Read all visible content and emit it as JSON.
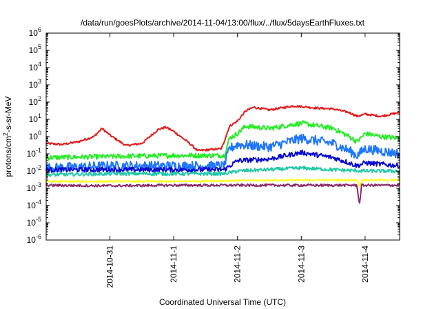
{
  "chart_data": {
    "type": "line",
    "title": "/data/run/goesPlots/archive/2014-11-04/13:00/flux/../flux/5daysEarthFluxes.txt",
    "xlabel": "Coordinated Universal Time (UTC)",
    "ylabel_parts": {
      "pre": "protons/cm",
      "sup": "2",
      "post": "-s-sr-MeV"
    },
    "y_scale": "log",
    "ylim": [
      1e-06,
      1000000.0
    ],
    "xlim": [
      "2014-10-30 00:00",
      "2014-11-04 13:00"
    ],
    "grid": false,
    "legend": "none",
    "x_ticks": [
      {
        "label": "2014-10-31",
        "x": "2014-10-31 00:00"
      },
      {
        "label": "2014-11-1",
        "x": "2014-11-01 00:00"
      },
      {
        "label": "2014-11-2",
        "x": "2014-11-02 00:00"
      },
      {
        "label": "2014-11-3",
        "x": "2014-11-03 00:00"
      },
      {
        "label": "2014-11-4",
        "x": "2014-11-04 00:00"
      }
    ],
    "y_ticks": [
      {
        "base": "10",
        "exp": "-6",
        "value": 1e-06
      },
      {
        "base": "10",
        "exp": "-5",
        "value": 1e-05
      },
      {
        "base": "10",
        "exp": "-4",
        "value": 0.0001
      },
      {
        "base": "10",
        "exp": "-3",
        "value": 0.001
      },
      {
        "base": "10",
        "exp": "-2",
        "value": 0.01
      },
      {
        "base": "10",
        "exp": "-1",
        "value": 0.1
      },
      {
        "base": "10",
        "exp": "0",
        "value": 1
      },
      {
        "base": "10",
        "exp": "1",
        "value": 10
      },
      {
        "base": "10",
        "exp": "2",
        "value": 100
      },
      {
        "base": "10",
        "exp": "3",
        "value": 1000
      },
      {
        "base": "10",
        "exp": "4",
        "value": 10000
      },
      {
        "base": "10",
        "exp": "5",
        "value": 100000
      },
      {
        "base": "10",
        "exp": "6",
        "value": 1000000
      }
    ],
    "series": [
      {
        "color": "#e41a1c",
        "noise": 0.06,
        "points": [
          [
            "2014-10-30 00:00",
            0.4
          ],
          [
            "2014-10-30 06:00",
            0.35
          ],
          [
            "2014-10-30 12:00",
            0.5
          ],
          [
            "2014-10-30 18:00",
            1.0
          ],
          [
            "2014-10-30 21:00",
            3.0
          ],
          [
            "2014-10-31 00:00",
            1.2
          ],
          [
            "2014-10-31 06:00",
            0.3
          ],
          [
            "2014-10-31 12:00",
            0.4
          ],
          [
            "2014-10-31 18:00",
            2.5
          ],
          [
            "2014-10-31 21:00",
            3.5
          ],
          [
            "2014-11-01 00:00",
            2.0
          ],
          [
            "2014-11-01 06:00",
            0.4
          ],
          [
            "2014-11-01 09:00",
            0.15
          ],
          [
            "2014-11-01 18:00",
            0.2
          ],
          [
            "2014-11-01 21:00",
            4.0
          ],
          [
            "2014-11-02 00:00",
            8
          ],
          [
            "2014-11-02 03:00",
            30
          ],
          [
            "2014-11-02 06:00",
            50
          ],
          [
            "2014-11-02 12:00",
            35
          ],
          [
            "2014-11-02 21:00",
            60
          ],
          [
            "2014-11-03 00:00",
            55
          ],
          [
            "2014-11-03 06:00",
            45
          ],
          [
            "2014-11-03 12:00",
            40
          ],
          [
            "2014-11-03 18:00",
            25
          ],
          [
            "2014-11-03 21:00",
            15
          ],
          [
            "2014-11-04 00:00",
            20
          ],
          [
            "2014-11-04 06:00",
            15
          ],
          [
            "2014-11-04 13:00",
            25
          ]
        ]
      },
      {
        "color": "#22ee22",
        "noise": 0.14,
        "points": [
          [
            "2014-10-30 00:00",
            0.06
          ],
          [
            "2014-10-31 00:00",
            0.07
          ],
          [
            "2014-11-01 00:00",
            0.08
          ],
          [
            "2014-11-01 19:00",
            0.08
          ],
          [
            "2014-11-01 21:00",
            0.8
          ],
          [
            "2014-11-02 00:00",
            1.5
          ],
          [
            "2014-11-02 03:00",
            4
          ],
          [
            "2014-11-02 12:00",
            3
          ],
          [
            "2014-11-03 00:00",
            6
          ],
          [
            "2014-11-03 12:00",
            3
          ],
          [
            "2014-11-03 18:00",
            1.0
          ],
          [
            "2014-11-03 21:00",
            0.5
          ],
          [
            "2014-11-04 00:00",
            1.5
          ],
          [
            "2014-11-04 06:00",
            1.0
          ],
          [
            "2014-11-04 13:00",
            0.8
          ]
        ]
      },
      {
        "color": "#1f77ff",
        "noise": 0.28,
        "points": [
          [
            "2014-10-30 00:00",
            0.015
          ],
          [
            "2014-10-31 00:00",
            0.02
          ],
          [
            "2014-11-01 00:00",
            0.02
          ],
          [
            "2014-11-01 19:00",
            0.02
          ],
          [
            "2014-11-01 21:00",
            0.2
          ],
          [
            "2014-11-02 00:00",
            0.35
          ],
          [
            "2014-11-02 12:00",
            0.25
          ],
          [
            "2014-11-03 00:00",
            0.8
          ],
          [
            "2014-11-03 12:00",
            0.4
          ],
          [
            "2014-11-03 18:00",
            0.15
          ],
          [
            "2014-11-03 21:00",
            0.08
          ],
          [
            "2014-11-04 00:00",
            0.2
          ],
          [
            "2014-11-04 13:00",
            0.1
          ]
        ]
      },
      {
        "color": "#0a0ad0",
        "noise": 0.14,
        "points": [
          [
            "2014-10-30 00:00",
            0.012
          ],
          [
            "2014-10-31 00:00",
            0.012
          ],
          [
            "2014-11-01 00:00",
            0.012
          ],
          [
            "2014-11-01 19:00",
            0.012
          ],
          [
            "2014-11-02 00:00",
            0.04
          ],
          [
            "2014-11-02 12:00",
            0.05
          ],
          [
            "2014-11-03 00:00",
            0.12
          ],
          [
            "2014-11-03 12:00",
            0.06
          ],
          [
            "2014-11-03 18:00",
            0.03
          ],
          [
            "2014-11-03 21:00",
            0.02
          ],
          [
            "2014-11-04 00:00",
            0.03
          ],
          [
            "2014-11-04 13:00",
            0.02
          ]
        ]
      },
      {
        "color": "#20c8a8",
        "noise": 0.1,
        "points": [
          [
            "2014-10-30 00:00",
            0.006
          ],
          [
            "2014-10-31 00:00",
            0.007
          ],
          [
            "2014-11-01 00:00",
            0.007
          ],
          [
            "2014-11-01 19:00",
            0.007
          ],
          [
            "2014-11-02 00:00",
            0.01
          ],
          [
            "2014-11-03 00:00",
            0.015
          ],
          [
            "2014-11-03 12:00",
            0.012
          ],
          [
            "2014-11-04 00:00",
            0.01
          ],
          [
            "2014-11-04 13:00",
            0.01
          ]
        ]
      },
      {
        "color": "#ffff22",
        "noise": 0.05,
        "points": [
          [
            "2014-10-30 00:00",
            0.0025
          ],
          [
            "2014-11-01 00:00",
            0.0025
          ],
          [
            "2014-11-02 00:00",
            0.0028
          ],
          [
            "2014-11-03 00:00",
            0.003
          ],
          [
            "2014-11-03 21:00",
            0.003
          ],
          [
            "2014-11-03 21:50",
            0.0012
          ],
          [
            "2014-11-03 22:40",
            0.003
          ],
          [
            "2014-11-04 13:00",
            0.003
          ]
        ]
      },
      {
        "color": "#8b2a6a",
        "noise": 0.07,
        "points": [
          [
            "2014-10-30 00:00",
            0.0015
          ],
          [
            "2014-10-31 00:00",
            0.0014
          ],
          [
            "2014-11-01 00:00",
            0.0015
          ],
          [
            "2014-11-02 00:00",
            0.0015
          ],
          [
            "2014-11-03 00:00",
            0.0015
          ],
          [
            "2014-11-03 21:00",
            0.0015
          ],
          [
            "2014-11-03 21:50",
            0.0001
          ],
          [
            "2014-11-03 22:40",
            0.0015
          ],
          [
            "2014-11-04 13:00",
            0.0015
          ]
        ]
      }
    ]
  }
}
